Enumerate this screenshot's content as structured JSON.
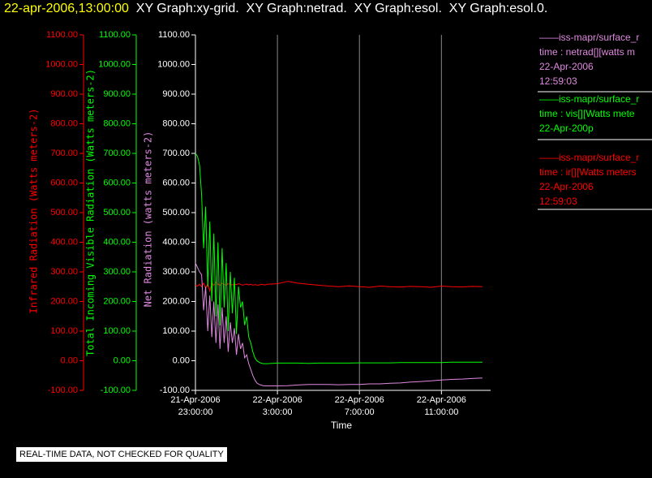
{
  "chart_data": {
    "type": "line",
    "title": "22-apr-2006,13:00:00",
    "subtitle": "XY Graph:xy-grid.  XY Graph:netrad.  XY Graph:esol.  XY Graph:esol.0.",
    "xlabel": "Time",
    "ylabel": "Net Radiation (watts meters-2)",
    "y2label": "Total Incoming Visible Radiation (Watts meters-2)",
    "y3label": "Infrared Radiation (Watts meters-2)",
    "note": "REAL-TIME DATA, NOT CHECKED FOR QUALITY",
    "grid": true,
    "xlim": [
      23,
      37.4
    ],
    "xticks": [
      {
        "value": 23,
        "label": "21-Apr-2006\n23:00:00"
      },
      {
        "value": 27,
        "label": "22-Apr-2006\n3:00:00"
      },
      {
        "value": 31,
        "label": "22-Apr-2006\n7:00:00"
      },
      {
        "value": 35,
        "label": "22-Apr-2006\n11:00:00"
      }
    ],
    "ylim": [
      -100,
      1100
    ],
    "yticks": [
      {
        "value": -100,
        "label": "-100.00"
      },
      {
        "value": 0,
        "label": "0.00"
      },
      {
        "value": 100,
        "label": "100.00"
      },
      {
        "value": 200,
        "label": "200.00"
      },
      {
        "value": 300,
        "label": "300.00"
      },
      {
        "value": 400,
        "label": "400.00"
      },
      {
        "value": 500,
        "label": "500.00"
      },
      {
        "value": 600,
        "label": "600.00"
      },
      {
        "value": 700,
        "label": "700.00"
      },
      {
        "value": 800,
        "label": "800.00"
      },
      {
        "value": 900,
        "label": "900.00"
      },
      {
        "value": 1000,
        "label": "1000.00"
      },
      {
        "value": 1100,
        "label": "1100.00"
      }
    ],
    "y2lim": [
      -100,
      1100
    ],
    "y2ticks": [
      {
        "value": -100,
        "label": "-100.00"
      },
      {
        "value": 0,
        "label": "0.00"
      },
      {
        "value": 100,
        "label": "100.00"
      },
      {
        "value": 200,
        "label": "200.00"
      },
      {
        "value": 300,
        "label": "300.00"
      },
      {
        "value": 400,
        "label": "400.00"
      },
      {
        "value": 500,
        "label": "500.00"
      },
      {
        "value": 600,
        "label": "600.00"
      },
      {
        "value": 700,
        "label": "700.00"
      },
      {
        "value": 800,
        "label": "800.00"
      },
      {
        "value": 900,
        "label": "900.00"
      },
      {
        "value": 1000,
        "label": "1000.00"
      },
      {
        "value": 1100,
        "label": "1100.00"
      }
    ],
    "y3lim": [
      -100,
      1100
    ],
    "y3ticks": [
      {
        "value": -100,
        "label": "-100.00"
      },
      {
        "value": 0,
        "label": "0.00"
      },
      {
        "value": 100,
        "label": "100.00"
      },
      {
        "value": 200,
        "label": "200.00"
      },
      {
        "value": 300,
        "label": "300.00"
      },
      {
        "value": 400,
        "label": "400.00"
      },
      {
        "value": 500,
        "label": "500.00"
      },
      {
        "value": 600,
        "label": "600.00"
      },
      {
        "value": 700,
        "label": "700.00"
      },
      {
        "value": 800,
        "label": "800.00"
      },
      {
        "value": 900,
        "label": "900.00"
      },
      {
        "value": 1000,
        "label": "1000.00"
      },
      {
        "value": 1100,
        "label": "1100.00"
      }
    ],
    "x": [
      23.0,
      23.1,
      23.2,
      23.3,
      23.4,
      23.5,
      23.6,
      23.7,
      23.8,
      23.9,
      24.0,
      24.1,
      24.2,
      24.3,
      24.4,
      24.5,
      24.6,
      24.7,
      24.8,
      24.9,
      25.0,
      25.1,
      25.2,
      25.3,
      25.4,
      25.5,
      25.6,
      25.7,
      25.8,
      25.9,
      26.0,
      26.1,
      26.2,
      26.3,
      26.4,
      26.5,
      27,
      27.5,
      28,
      28.5,
      29,
      29.5,
      30,
      30.5,
      31,
      31.5,
      32,
      32.5,
      33,
      33.5,
      34,
      34.5,
      35,
      35.5,
      36,
      36.5,
      37
    ],
    "series": [
      {
        "name": "——iss-mapr/surface_r",
        "legend": [
          "time : netrad[][watts m",
          "22-Apr-2006",
          "12:59:03"
        ],
        "color": "#e088e0",
        "axis": "y",
        "values": [
          330,
          315,
          300,
          290,
          170,
          250,
          100,
          220,
          80,
          200,
          60,
          190,
          40,
          180,
          60,
          150,
          30,
          130,
          60,
          110,
          20,
          90,
          40,
          60,
          10,
          20,
          -10,
          -30,
          -50,
          -65,
          -75,
          -80,
          -82,
          -84,
          -85,
          -85,
          -85,
          -84,
          -82,
          -80,
          -80,
          -80,
          -81,
          -80,
          -80,
          -78,
          -78,
          -76,
          -75,
          -72,
          -70,
          -68,
          -65,
          -63,
          -62,
          -60,
          -58
        ]
      },
      {
        "name": "——iss-mapr/surface_r",
        "legend": [
          "time : vis[][Watts mete",
          "22-Apr-200p"
        ],
        "color": "#00ff00",
        "axis": "y2",
        "values": [
          700,
          690,
          660,
          560,
          380,
          520,
          250,
          470,
          200,
          430,
          150,
          400,
          120,
          380,
          180,
          330,
          100,
          300,
          160,
          280,
          90,
          250,
          180,
          200,
          120,
          150,
          80,
          60,
          30,
          10,
          0,
          -5,
          -8,
          -10,
          -10,
          -10,
          -8,
          -8,
          -8,
          -9,
          -8,
          -8,
          -8,
          -8,
          -7,
          -7,
          -7,
          -7,
          -6,
          -6,
          -6,
          -6,
          -6,
          -5,
          -5,
          -5,
          -5
        ]
      },
      {
        "name": "——iss-mapr/surface_r",
        "legend": [
          "time : ir[][Watts meters",
          "22-Apr-2006",
          "12:59:03"
        ],
        "color": "#ff0000",
        "axis": "y3",
        "values": [
          255,
          252,
          258,
          250,
          262,
          245,
          260,
          235,
          262,
          255,
          265,
          258,
          255,
          262,
          258,
          255,
          260,
          258,
          256,
          258,
          257,
          260,
          258,
          255,
          257,
          259,
          256,
          258,
          255,
          257,
          256,
          255,
          258,
          257,
          256,
          258,
          260,
          268,
          262,
          258,
          255,
          252,
          250,
          253,
          250,
          248,
          252,
          250,
          249,
          251,
          250,
          248,
          252,
          250,
          249,
          251,
          250
        ]
      }
    ]
  }
}
